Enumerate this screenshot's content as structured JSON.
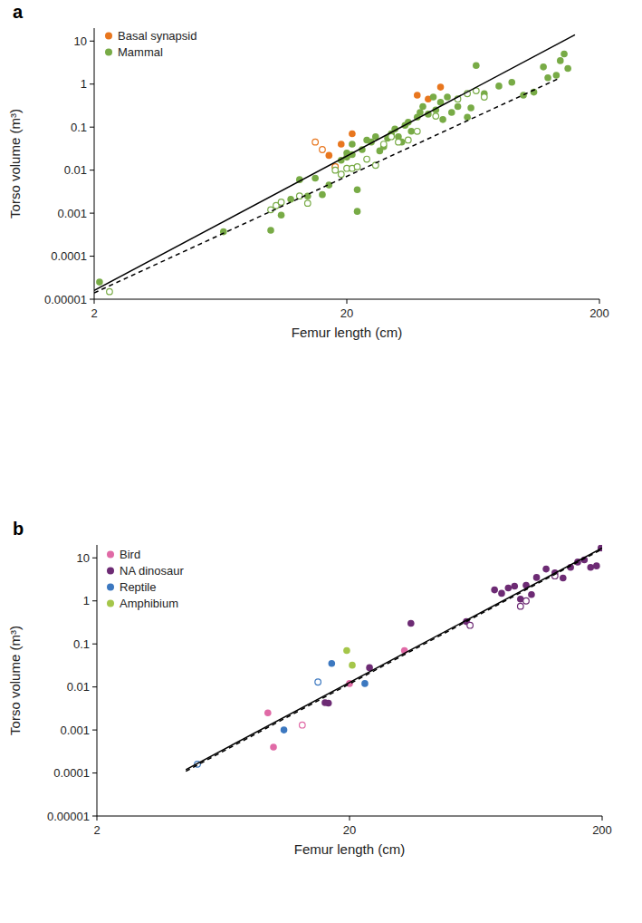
{
  "chart_data": [
    {
      "type": "scatter",
      "title": "a",
      "x_label": "Femur length (cm)",
      "y_label": "Torso volume (m³)",
      "log": true,
      "legend": "top-left",
      "xlim": [
        2,
        200
      ],
      "ylim": [
        1e-05,
        20
      ],
      "xticks": [
        2,
        20,
        200
      ],
      "yticks": [
        1e-05,
        0.0001,
        0.001,
        0.01,
        0.1,
        1,
        10
      ],
      "series": [
        {
          "name": "Basal synapsid",
          "color": "#e8761e",
          "marker": "circle",
          "x": [
            17,
            19,
            21,
            38,
            42,
            47
          ],
          "values": [
            0.022,
            0.04,
            0.07,
            0.55,
            0.45,
            0.85
          ]
        },
        {
          "name": "Mammal",
          "color": "#78ab46",
          "marker": "circle",
          "x": [
            2.1,
            6.5,
            10,
            11,
            12,
            13,
            14,
            15,
            16,
            17,
            18,
            19,
            20,
            20,
            21,
            22,
            22,
            21,
            23,
            24,
            25,
            26,
            27,
            28,
            29,
            30,
            31,
            32,
            33,
            34,
            35,
            36,
            38,
            39,
            40,
            42,
            44,
            45,
            47,
            48,
            50,
            52,
            55,
            60,
            62,
            65,
            70,
            80,
            90,
            100,
            110,
            120,
            125,
            135,
            140,
            145,
            150
          ],
          "values": [
            2.5e-05,
            0.00037,
            0.0004,
            0.0009,
            0.0021,
            0.006,
            0.0025,
            0.0065,
            0.0027,
            0.0045,
            0.012,
            0.017,
            0.02,
            0.025,
            0.023,
            0.0011,
            0.0035,
            0.04,
            0.03,
            0.05,
            0.045,
            0.06,
            0.028,
            0.035,
            0.055,
            0.07,
            0.09,
            0.06,
            0.045,
            0.11,
            0.13,
            0.08,
            0.17,
            0.22,
            0.3,
            0.2,
            0.5,
            0.25,
            0.38,
            0.15,
            0.5,
            0.22,
            0.3,
            0.17,
            0.28,
            2.7,
            0.6,
            0.9,
            1.1,
            0.55,
            0.65,
            2.5,
            1.4,
            1.6,
            3.5,
            5,
            2.3
          ]
        },
        {
          "color": "#e8761e",
          "marker": "open-circle",
          "x": [
            15,
            16,
            18
          ],
          "values": [
            0.045,
            0.03,
            0.012
          ]
        },
        {
          "color": "#78ab46",
          "marker": "open-circle",
          "x": [
            2.3,
            10,
            10.5,
            11,
            13,
            14,
            18,
            19,
            20,
            21,
            22,
            24,
            26,
            28,
            30,
            32,
            35,
            38,
            45,
            55,
            60,
            65,
            70
          ],
          "values": [
            1.5e-05,
            0.0012,
            0.0015,
            0.0018,
            0.0025,
            0.0017,
            0.01,
            0.008,
            0.011,
            0.011,
            0.012,
            0.018,
            0.013,
            0.04,
            0.06,
            0.045,
            0.05,
            0.08,
            0.18,
            0.45,
            0.6,
            0.7,
            0.5
          ]
        },
        {
          "type": "line",
          "color": "#000000",
          "line_style": "solid",
          "x": [
            2,
            160
          ],
          "values": [
            1.6e-05,
            14
          ]
        },
        {
          "type": "line",
          "color": "#000000",
          "line_style": "dashed",
          "x": [
            2,
            140
          ],
          "values": [
            1.4e-05,
            1.4
          ]
        }
      ]
    },
    {
      "type": "scatter",
      "title": "b",
      "x_label": "Femur length (cm)",
      "y_label": "Torso volume (m³)",
      "log": true,
      "legend": "top-left",
      "xlim": [
        2,
        200
      ],
      "ylim": [
        1e-05,
        20
      ],
      "xticks": [
        2,
        20,
        200
      ],
      "yticks": [
        1e-05,
        0.0001,
        0.001,
        0.01,
        0.1,
        1,
        10
      ],
      "series": [
        {
          "name": "Bird",
          "color": "#e06aa6",
          "marker": "circle",
          "x": [
            9.5,
            10,
            20,
            33
          ],
          "values": [
            0.0025,
            0.0004,
            0.012,
            0.07
          ]
        },
        {
          "name": "NA dinosaur",
          "color": "#6d2b74",
          "marker": "circle",
          "x": [
            16,
            16.5,
            24,
            35,
            58,
            75,
            80,
            85,
            90,
            95,
            100,
            105,
            110,
            120,
            130,
            140,
            150,
            160,
            170,
            180,
            190,
            198
          ],
          "values": [
            0.0043,
            0.0042,
            0.028,
            0.3,
            0.33,
            1.8,
            1.5,
            2,
            2.2,
            1.1,
            2.3,
            1.4,
            3.5,
            5.5,
            4.5,
            3.4,
            6,
            8,
            9,
            6,
            6.5,
            17
          ]
        },
        {
          "name": "Reptile",
          "color": "#3c78c0",
          "marker": "circle",
          "x": [
            11,
            17,
            23
          ],
          "values": [
            0.001,
            0.035,
            0.012
          ]
        },
        {
          "name": "Amphibium",
          "color": "#a5c64a",
          "marker": "circle",
          "x": [
            19.5,
            20.5
          ],
          "values": [
            0.07,
            0.032
          ]
        },
        {
          "color": "#e06aa6",
          "marker": "open-circle",
          "x": [
            13
          ],
          "values": [
            0.0013
          ]
        },
        {
          "color": "#6d2b74",
          "marker": "open-circle",
          "x": [
            60,
            95,
            100,
            130
          ],
          "values": [
            0.27,
            0.75,
            1,
            3.8
          ]
        },
        {
          "color": "#3c78c0",
          "marker": "open-circle",
          "x": [
            5,
            15
          ],
          "values": [
            0.00016,
            0.013
          ]
        },
        {
          "type": "line",
          "color": "#000000",
          "line_style": "solid",
          "x": [
            4.5,
            200
          ],
          "values": [
            0.00012,
            17
          ]
        },
        {
          "type": "line",
          "color": "#000000",
          "line_style": "dashed",
          "x": [
            4.5,
            200
          ],
          "values": [
            0.00011,
            16
          ]
        }
      ]
    }
  ]
}
